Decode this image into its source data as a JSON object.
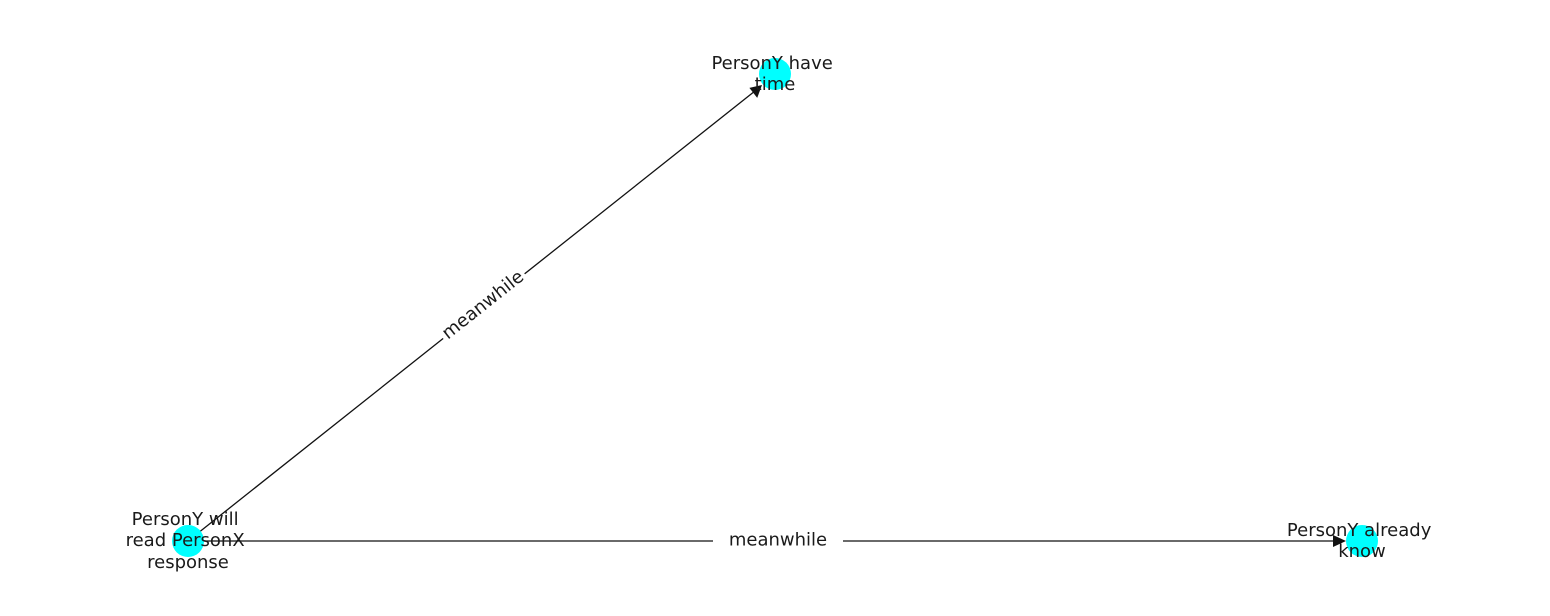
{
  "graph": {
    "node_color": "#00ffff",
    "edge_color": "#111111",
    "nodes": [
      {
        "id": "n1",
        "label_lines": [
          "PersonY will",
          "read PersonX",
          "response"
        ]
      },
      {
        "id": "n2",
        "label_lines": [
          "PersonY have",
          "time"
        ]
      },
      {
        "id": "n3",
        "label_lines": [
          "PersonY already",
          "know"
        ]
      }
    ],
    "edges": [
      {
        "from": "n1",
        "to": "n2",
        "label": "meanwhile"
      },
      {
        "from": "n1",
        "to": "n3",
        "label": "meanwhile"
      }
    ]
  }
}
